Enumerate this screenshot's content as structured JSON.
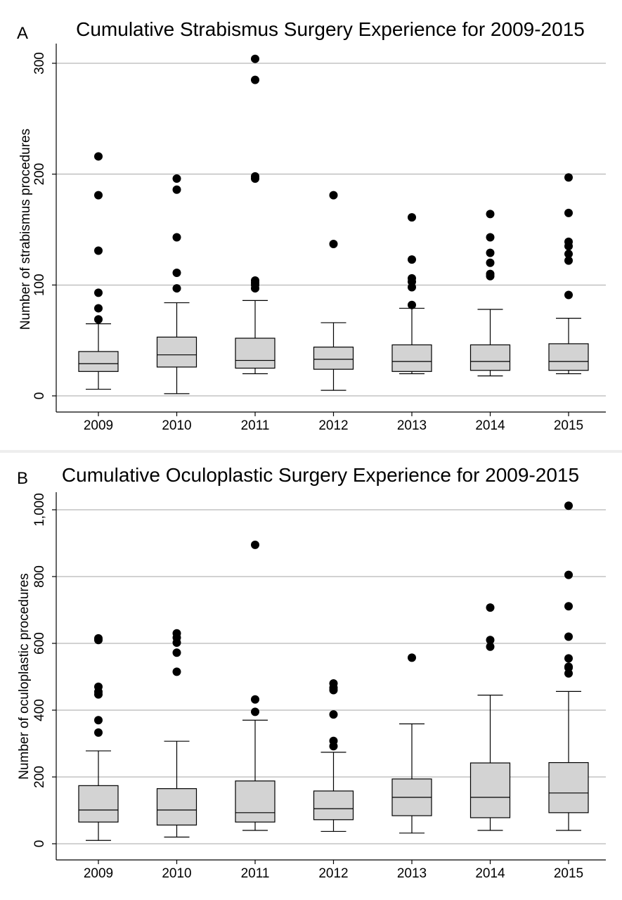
{
  "chart_data": [
    {
      "type": "box",
      "panel_label": "A",
      "title": "Cumulative Strabismus Surgery Experience for 2009-2015",
      "xlabel": "",
      "ylabel": "Number of strabismus procedures",
      "ylim": [
        0,
        320
      ],
      "yticks": [
        0,
        100,
        200,
        300
      ],
      "ytick_labels": [
        "0",
        "100",
        "200",
        "300"
      ],
      "grid": true,
      "colors": {
        "box": "#d3d3d3",
        "outlier": "#000000",
        "grid": "#a6a6a6"
      },
      "categories": [
        "2009",
        "2010",
        "2011",
        "2012",
        "2013",
        "2014",
        "2015"
      ],
      "boxes": [
        {
          "category": "2009",
          "whisker_low": 6,
          "q1": 22,
          "median": 29,
          "q3": 40,
          "whisker_high": 65,
          "outliers": [
            69,
            79,
            93,
            131,
            181,
            216
          ]
        },
        {
          "category": "2010",
          "whisker_low": 2,
          "q1": 26,
          "median": 37,
          "q3": 53,
          "whisker_high": 84,
          "outliers": [
            97,
            111,
            143,
            186,
            196
          ]
        },
        {
          "category": "2011",
          "whisker_low": 20,
          "q1": 25,
          "median": 32,
          "q3": 52,
          "whisker_high": 86,
          "outliers": [
            97,
            100,
            102,
            104,
            196,
            198,
            285,
            304
          ]
        },
        {
          "category": "2012",
          "whisker_low": 5,
          "q1": 24,
          "median": 33,
          "q3": 44,
          "whisker_high": 66,
          "outliers": [
            137,
            181
          ]
        },
        {
          "category": "2013",
          "whisker_low": 20,
          "q1": 22,
          "median": 31,
          "q3": 46,
          "whisker_high": 79,
          "outliers": [
            82,
            98,
            103,
            106,
            123,
            161
          ]
        },
        {
          "category": "2014",
          "whisker_low": 18,
          "q1": 23,
          "median": 31,
          "q3": 46,
          "whisker_high": 78,
          "outliers": [
            108,
            110,
            120,
            129,
            143,
            164
          ]
        },
        {
          "category": "2015",
          "whisker_low": 20,
          "q1": 23,
          "median": 31,
          "q3": 47,
          "whisker_high": 70,
          "outliers": [
            91,
            122,
            128,
            135,
            139,
            165,
            197
          ]
        }
      ]
    },
    {
      "type": "box",
      "panel_label": "B",
      "title": "Cumulative Oculoplastic Surgery Experience for 2009-2015",
      "xlabel": "",
      "ylabel": "Number of oculoplastic procedures",
      "ylim": [
        -50,
        1050
      ],
      "yticks": [
        0,
        200,
        400,
        600,
        800,
        1000
      ],
      "ytick_labels": [
        "0",
        "200",
        "400",
        "600",
        "800",
        "1,000"
      ],
      "grid": true,
      "colors": {
        "box": "#d3d3d3",
        "outlier": "#000000",
        "grid": "#a6a6a6"
      },
      "categories": [
        "2009",
        "2010",
        "2011",
        "2012",
        "2013",
        "2014",
        "2015"
      ],
      "boxes": [
        {
          "category": "2009",
          "whisker_low": 10,
          "q1": 65,
          "median": 101,
          "q3": 174,
          "whisker_high": 278,
          "outliers": [
            333,
            370,
            447,
            455,
            470,
            610,
            615
          ]
        },
        {
          "category": "2010",
          "whisker_low": 20,
          "q1": 56,
          "median": 101,
          "q3": 165,
          "whisker_high": 307,
          "outliers": [
            515,
            572,
            602,
            617,
            630
          ]
        },
        {
          "category": "2011",
          "whisker_low": 40,
          "q1": 65,
          "median": 93,
          "q3": 188,
          "whisker_high": 370,
          "outliers": [
            395,
            432,
            895
          ]
        },
        {
          "category": "2012",
          "whisker_low": 37,
          "q1": 72,
          "median": 105,
          "q3": 158,
          "whisker_high": 274,
          "outliers": [
            292,
            308,
            387,
            460,
            467,
            480
          ]
        },
        {
          "category": "2013",
          "whisker_low": 32,
          "q1": 84,
          "median": 139,
          "q3": 194,
          "whisker_high": 359,
          "outliers": [
            557
          ]
        },
        {
          "category": "2014",
          "whisker_low": 40,
          "q1": 78,
          "median": 139,
          "q3": 242,
          "whisker_high": 445,
          "outliers": [
            590,
            610,
            707
          ]
        },
        {
          "category": "2015",
          "whisker_low": 40,
          "q1": 93,
          "median": 152,
          "q3": 243,
          "whisker_high": 456,
          "outliers": [
            510,
            527,
            530,
            555,
            620,
            711,
            805,
            1012
          ]
        }
      ]
    }
  ]
}
